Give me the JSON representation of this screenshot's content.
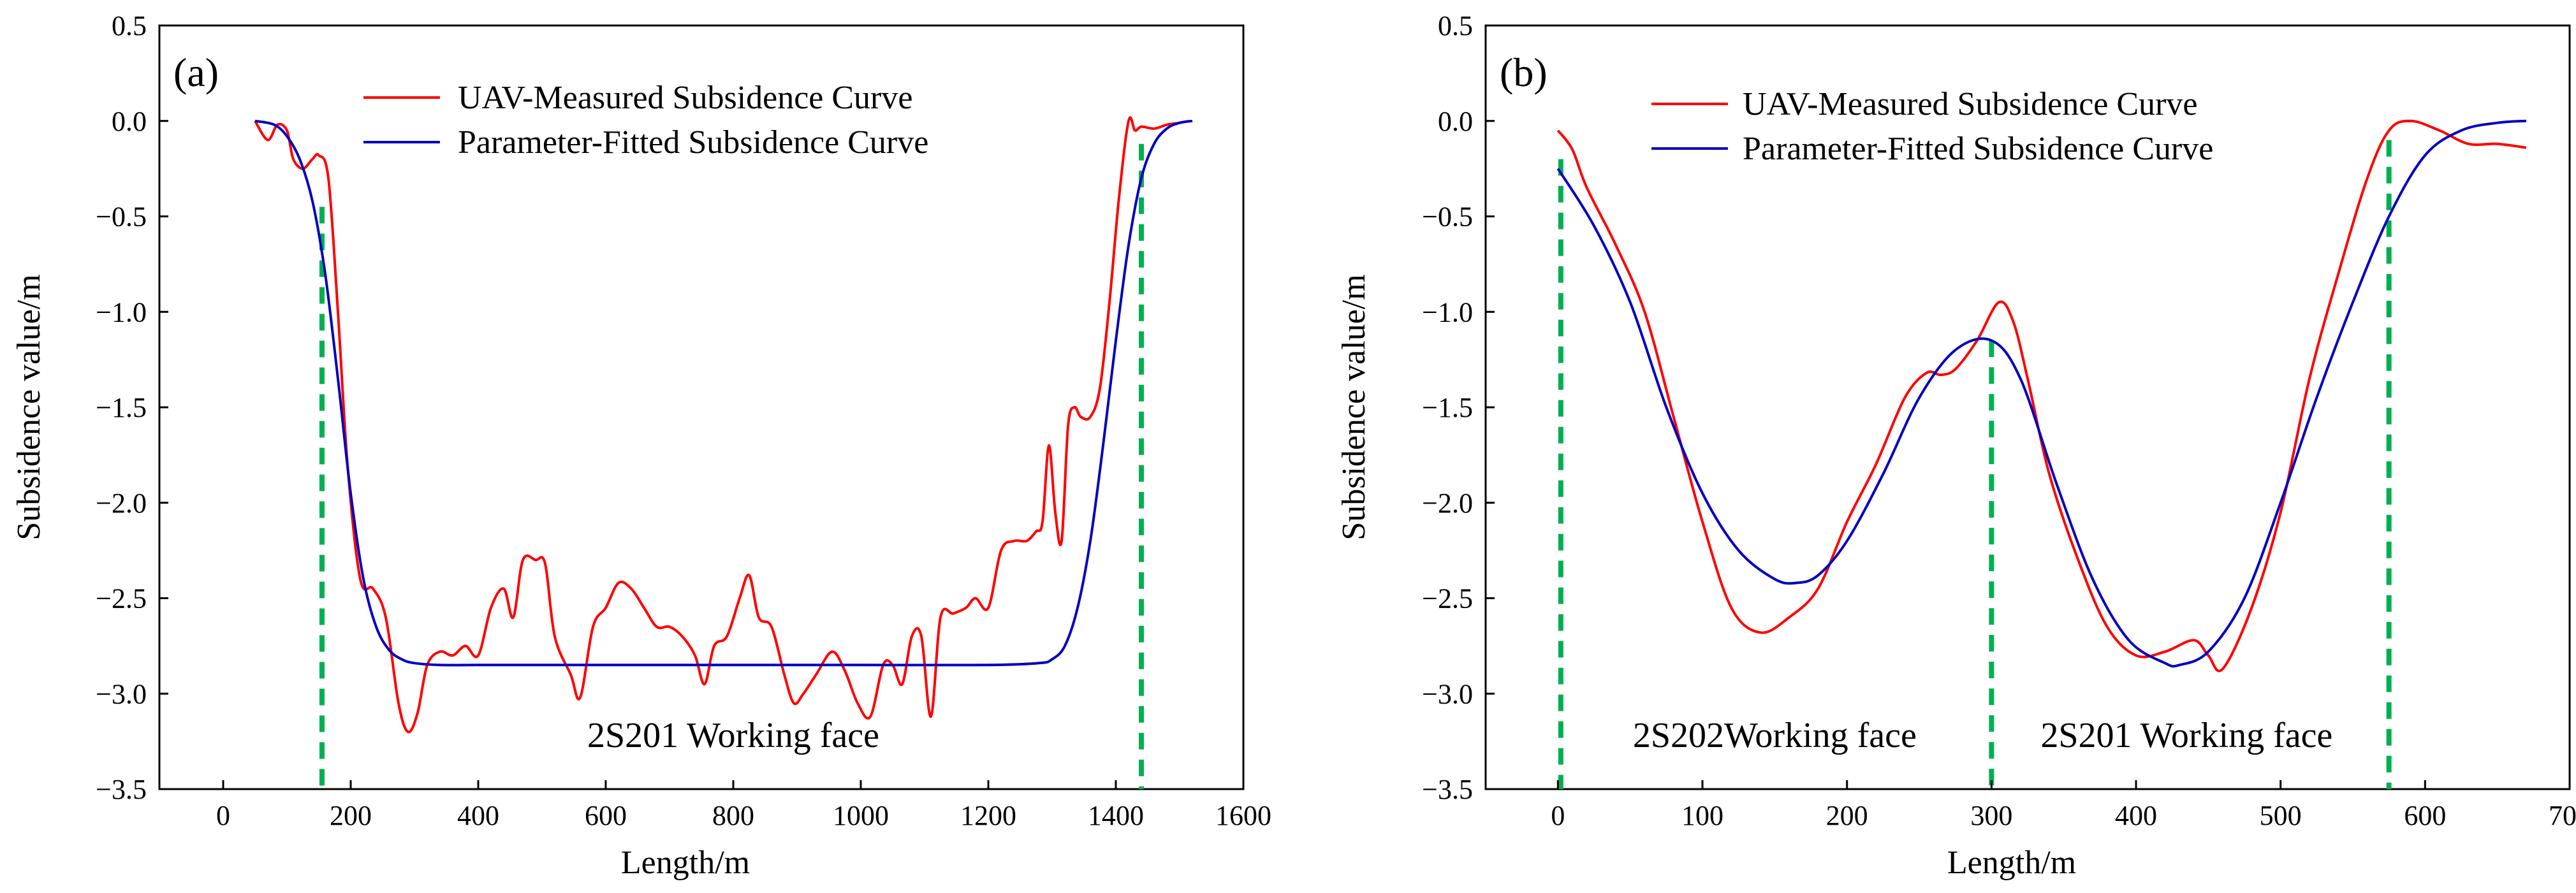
{
  "chart_data": [
    {
      "panel": "(a)",
      "type": "line",
      "xlabel": "Length/m",
      "ylabel": "Subsidence value/m",
      "xlim": [
        -100,
        1600
      ],
      "ylim": [
        -3.5,
        0.5
      ],
      "xticks": [
        0,
        200,
        400,
        600,
        800,
        1000,
        1200,
        1400,
        1600
      ],
      "yticks": [
        0.5,
        0.0,
        -0.5,
        -1.0,
        -1.5,
        -2.0,
        -2.5,
        -3.0,
        -3.5
      ],
      "ytick_labels": [
        "0.5",
        "0.0",
        "−0.5",
        "−1.0",
        "−1.5",
        "−2.0",
        "−2.5",
        "−3.0",
        "−3.5"
      ],
      "legend_position": "top-center",
      "series": [
        {
          "name": "UAV-Measured Subsidence Curve",
          "color": "#ff0000",
          "x": [
            50,
            70,
            85,
            100,
            110,
            125,
            140,
            150,
            165,
            180,
            195,
            215,
            235,
            255,
            275,
            290,
            305,
            320,
            340,
            360,
            380,
            400,
            420,
            440,
            455,
            470,
            490,
            505,
            520,
            545,
            560,
            580,
            600,
            620,
            640,
            660,
            680,
            700,
            720,
            740,
            755,
            770,
            790,
            810,
            825,
            840,
            860,
            880,
            895,
            910,
            930,
            955,
            975,
            995,
            1015,
            1035,
            1050,
            1065,
            1080,
            1095,
            1110,
            1125,
            1145,
            1165,
            1180,
            1200,
            1220,
            1240,
            1260,
            1275,
            1285,
            1295,
            1305,
            1315,
            1325,
            1335,
            1345,
            1360,
            1375,
            1390,
            1405,
            1420,
            1430,
            1440,
            1460,
            1480,
            1500,
            1515
          ],
          "y": [
            0.0,
            -0.1,
            -0.02,
            -0.05,
            -0.2,
            -0.25,
            -0.2,
            -0.18,
            -0.3,
            -1.0,
            -1.8,
            -2.4,
            -2.45,
            -2.6,
            -3.05,
            -3.2,
            -3.1,
            -2.85,
            -2.78,
            -2.8,
            -2.75,
            -2.8,
            -2.55,
            -2.45,
            -2.6,
            -2.3,
            -2.3,
            -2.32,
            -2.7,
            -2.9,
            -3.02,
            -2.65,
            -2.55,
            -2.42,
            -2.45,
            -2.55,
            -2.65,
            -2.65,
            -2.7,
            -2.8,
            -2.95,
            -2.75,
            -2.7,
            -2.5,
            -2.38,
            -2.6,
            -2.65,
            -2.9,
            -3.05,
            -3.0,
            -2.9,
            -2.78,
            -2.88,
            -3.05,
            -3.12,
            -2.85,
            -2.85,
            -2.95,
            -2.7,
            -2.7,
            -3.12,
            -2.6,
            -2.58,
            -2.55,
            -2.5,
            -2.55,
            -2.25,
            -2.2,
            -2.2,
            -2.15,
            -2.1,
            -1.7,
            -2.05,
            -2.2,
            -1.6,
            -1.5,
            -1.55,
            -1.55,
            -1.4,
            -0.95,
            -0.4,
            0.0,
            -0.05,
            -0.03,
            -0.04,
            -0.02,
            -0.01,
            0.0
          ]
        },
        {
          "name": "Parameter-Fitted Subsidence Curve",
          "color": "#0000c0",
          "x": [
            50,
            80,
            100,
            120,
            140,
            160,
            180,
            200,
            220,
            240,
            260,
            280,
            300,
            340,
            400,
            600,
            800,
            1000,
            1200,
            1280,
            1300,
            1320,
            1340,
            1360,
            1380,
            1400,
            1420,
            1440,
            1460,
            1480,
            1500,
            1520
          ],
          "y": [
            0.0,
            -0.02,
            -0.08,
            -0.2,
            -0.42,
            -0.8,
            -1.35,
            -1.95,
            -2.4,
            -2.65,
            -2.77,
            -2.82,
            -2.84,
            -2.85,
            -2.85,
            -2.85,
            -2.85,
            -2.85,
            -2.85,
            -2.84,
            -2.82,
            -2.75,
            -2.55,
            -2.2,
            -1.7,
            -1.15,
            -0.65,
            -0.3,
            -0.12,
            -0.04,
            -0.01,
            0.0
          ]
        }
      ],
      "vertical_markers": [
        {
          "x": 155,
          "y_top": -0.45,
          "y_bottom": -3.5,
          "color": "#00b050"
        },
        {
          "x": 1440,
          "y_top": -0.12,
          "y_bottom": -3.5,
          "color": "#00b050"
        }
      ],
      "annotations": [
        {
          "text": "2S201 Working face",
          "x": 800,
          "y": -3.22
        }
      ]
    },
    {
      "panel": "(b)",
      "type": "line",
      "xlabel": "Length/m",
      "ylabel": "Subsidence value/m",
      "xlim": [
        -50,
        700
      ],
      "ylim": [
        -3.5,
        0.5
      ],
      "xticks": [
        0,
        100,
        200,
        300,
        400,
        500,
        600,
        700
      ],
      "yticks": [
        0.5,
        0.0,
        -0.5,
        -1.0,
        -1.5,
        -2.0,
        -2.5,
        -3.0,
        -3.5
      ],
      "ytick_labels": [
        "0.5",
        "0.0",
        "−0.5",
        "−1.0",
        "−1.5",
        "−2.0",
        "−2.5",
        "−3.0",
        "−3.5"
      ],
      "legend_position": "top-center",
      "series": [
        {
          "name": "UAV-Measured Subsidence Curve",
          "color": "#ff0000",
          "x": [
            0,
            10,
            20,
            40,
            60,
            80,
            100,
            120,
            140,
            160,
            180,
            200,
            220,
            240,
            255,
            265,
            275,
            290,
            305,
            315,
            325,
            340,
            360,
            380,
            400,
            420,
            440,
            450,
            460,
            480,
            500,
            520,
            540,
            560,
            575,
            590,
            610,
            630,
            650,
            670
          ],
          "y": [
            -0.05,
            -0.15,
            -0.35,
            -0.65,
            -1.0,
            -1.55,
            -2.1,
            -2.55,
            -2.68,
            -2.6,
            -2.45,
            -2.1,
            -1.8,
            -1.45,
            -1.32,
            -1.33,
            -1.3,
            -1.15,
            -0.95,
            -1.05,
            -1.35,
            -1.85,
            -2.3,
            -2.65,
            -2.8,
            -2.78,
            -2.72,
            -2.8,
            -2.87,
            -2.55,
            -2.05,
            -1.35,
            -0.8,
            -0.3,
            -0.05,
            0.0,
            -0.05,
            -0.12,
            -0.12,
            -0.14
          ]
        },
        {
          "name": "Parameter-Fitted Subsidence Curve",
          "color": "#0000c0",
          "x": [
            0,
            25,
            50,
            75,
            100,
            125,
            150,
            165,
            180,
            200,
            225,
            250,
            275,
            300,
            320,
            345,
            370,
            395,
            420,
            430,
            450,
            475,
            500,
            525,
            550,
            575,
            600,
            625,
            650,
            670
          ],
          "y": [
            -0.25,
            -0.55,
            -0.95,
            -1.5,
            -1.95,
            -2.25,
            -2.4,
            -2.42,
            -2.38,
            -2.2,
            -1.85,
            -1.45,
            -1.2,
            -1.15,
            -1.35,
            -1.9,
            -2.4,
            -2.72,
            -2.84,
            -2.85,
            -2.78,
            -2.5,
            -2.0,
            -1.45,
            -0.95,
            -0.5,
            -0.18,
            -0.05,
            -0.01,
            0.0
          ]
        }
      ],
      "vertical_markers": [
        {
          "x": 2,
          "y_top": -0.2,
          "y_bottom": -3.5,
          "color": "#00b050"
        },
        {
          "x": 300,
          "y_top": -1.15,
          "y_bottom": -3.5,
          "color": "#00b050"
        },
        {
          "x": 575,
          "y_top": -0.1,
          "y_bottom": -3.5,
          "color": "#00b050"
        }
      ],
      "annotations": [
        {
          "text": "2S202Working face",
          "x": 150,
          "y": -3.22
        },
        {
          "text": "2S201 Working face",
          "x": 435,
          "y": -3.22
        }
      ]
    }
  ]
}
